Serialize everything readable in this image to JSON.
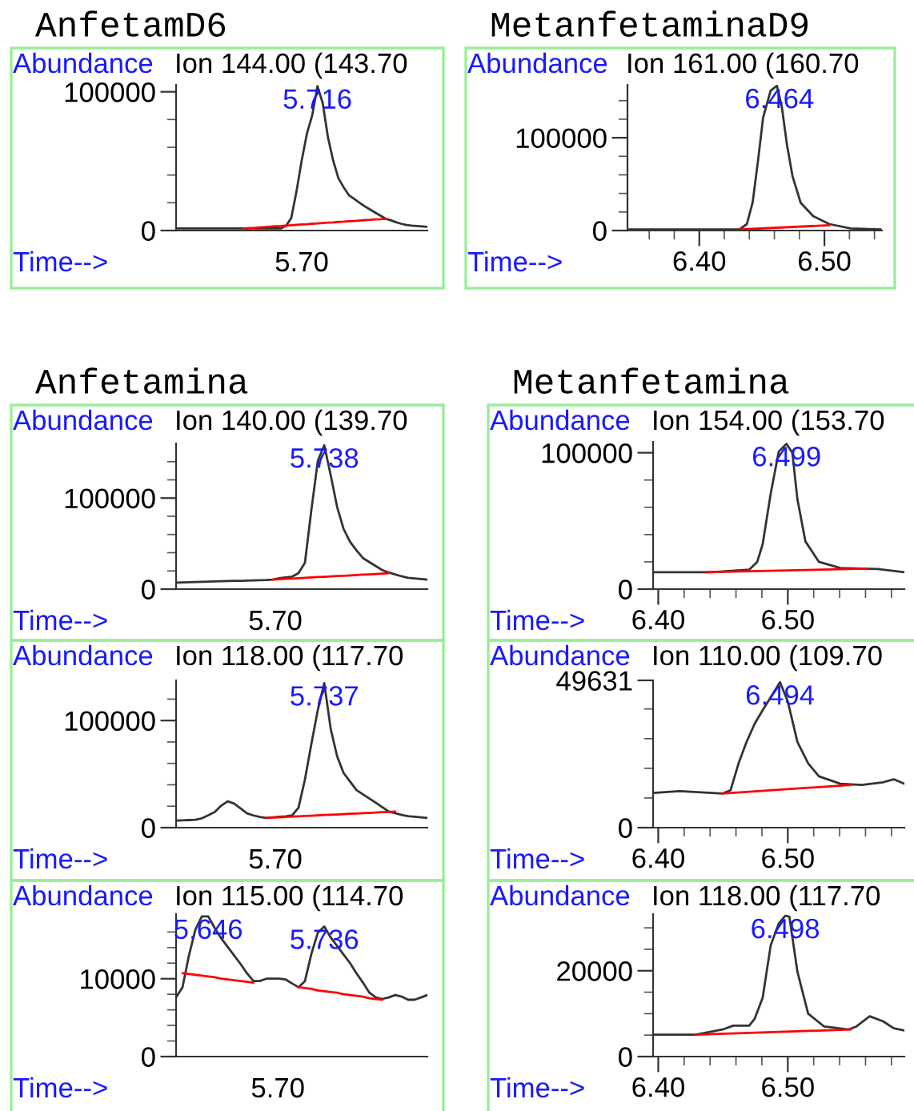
{
  "chart_data": [
    {
      "type": "line",
      "title": "AnfetamD6",
      "subtitle": "Ion 144.00 (143.70",
      "ylabel": "Abundance",
      "xlabel": "Time-->",
      "ylim": [
        0,
        105000
      ],
      "categories": [
        null,
        null,
        null,
        null,
        null,
        null,
        null,
        null,
        null,
        null,
        null,
        null,
        null,
        null,
        null,
        null,
        null,
        null,
        null,
        null,
        null,
        null,
        null,
        null,
        null,
        null,
        null,
        null,
        null,
        null,
        null,
        null,
        null,
        null,
        null,
        null,
        null,
        null,
        null,
        null,
        null,
        null,
        null,
        null,
        null,
        null,
        null,
        null,
        null
      ],
      "yticks": [
        0,
        {
          "value": 20000,
          "label": null
        },
        {
          "value": 40000,
          "label": null
        },
        {
          "value": 60000,
          "label": null
        },
        {
          "value": 80000,
          "label": null
        },
        100000
      ],
      "series": [
        {
          "color": "#333333",
          "values": [
            1500,
            1500,
            1500,
            1500,
            1500,
            1500,
            1500,
            1500,
            1500,
            1500,
            1500,
            1500,
            1500,
            1500,
            1500,
            1500,
            1500,
            1500,
            1500,
            1500,
            1500,
            3400,
            9000,
            28200,
            50600,
            70000,
            83000,
            104000,
            92000,
            67400,
            50500,
            37700,
            31200,
            25500,
            22800,
            20100,
            17500,
            15300,
            13000,
            10800,
            8500,
            7400,
            6000,
            4900,
            4000,
            3600,
            3300,
            3000,
            2700
          ]
        },
        {
          "color": "#ff0000",
          "values": [
            null,
            null,
            null,
            null,
            null,
            null,
            null,
            null,
            null,
            null,
            null,
            null,
            null,
            1500,
            1800,
            2000,
            2300,
            2500,
            2800,
            3100,
            3300,
            3600,
            3800,
            4100,
            4400,
            4600,
            4900,
            5100,
            5400,
            5700,
            5900,
            6200,
            6400,
            6700,
            6900,
            7200,
            7500,
            7700,
            8000,
            8200,
            8500,
            null,
            null,
            null,
            null,
            null,
            null,
            null,
            null
          ]
        }
      ],
      "annotations": [
        {
          "text": "5.716",
          "y": 104000
        },
        "5.70"
      ]
    },
    {
      "type": "line",
      "title": "MetanfetaminaD9",
      "subtitle": "Ion 161.00 (160.70",
      "ylabel": "Abundance",
      "xlabel": "Time-->",
      "xlim": [
        6.3426,
        6.546
      ],
      "ylim": [
        0,
        157000
      ],
      "xticks": [
        {
          "value": 6.36,
          "label": null
        },
        {
          "value": 6.38,
          "label": null
        },
        {
          "value": 6.4,
          "label": "6.40"
        },
        {
          "value": 6.42,
          "label": null
        },
        {
          "value": 6.44,
          "label": null
        },
        {
          "value": 6.46,
          "label": null
        },
        {
          "value": 6.48,
          "label": null
        },
        {
          "value": 6.5,
          "label": "6.50"
        },
        {
          "value": 6.52,
          "label": null
        },
        {
          "value": 6.54,
          "label": null
        }
      ],
      "yticks": [
        0,
        {
          "value": 20000,
          "label": null
        },
        {
          "value": 40000,
          "label": null
        },
        {
          "value": 60000,
          "label": null
        },
        {
          "value": 80000,
          "label": null
        },
        100000,
        {
          "value": 120000,
          "label": null
        },
        {
          "value": 140000,
          "label": null
        }
      ],
      "series": [
        {
          "color": "#333333",
          "x": [
            6.3426,
            6.432,
            6.438,
            6.4426,
            6.447,
            6.451,
            6.457,
            6.462,
            6.466,
            6.47,
            6.4745,
            6.481,
            6.491,
            6.504,
            6.521,
            6.545
          ],
          "values": [
            1100,
            1100,
            6900,
            30000,
            76000,
            121800,
            150600,
            156000,
            133000,
            93000,
            58600,
            30000,
            15500,
            6900,
            2300,
            1100
          ]
        },
        {
          "color": "#ff0000",
          "x": [
            6.432,
            6.504
          ],
          "values": [
            1100,
            5700
          ]
        }
      ],
      "annotations": [
        {
          "text": "6.464",
          "x": 6.464,
          "y": 156000
        }
      ]
    },
    {
      "type": "line",
      "title": "Anfetamina",
      "subtitle": "Ion 140.00 (139.70",
      "ylabel": "Abundance",
      "xlabel": "Time-->",
      "ylim": [
        0,
        160000
      ],
      "categories": [
        null,
        null,
        null,
        null,
        null,
        null,
        null,
        null,
        null,
        null,
        null,
        null,
        null,
        null,
        null,
        null,
        null,
        null,
        null,
        null,
        null,
        null,
        null,
        null,
        null,
        null,
        null,
        null,
        null,
        null,
        null,
        null,
        null,
        null,
        null,
        null,
        null,
        null,
        null,
        null
      ],
      "yticks": [
        0,
        {
          "value": 20000,
          "label": null
        },
        {
          "value": 40000,
          "label": null
        },
        {
          "value": 60000,
          "label": null
        },
        {
          "value": 80000,
          "label": null
        },
        100000,
        {
          "value": 120000,
          "label": null
        },
        {
          "value": 140000,
          "label": null
        }
      ],
      "series": [
        {
          "color": "#333333",
          "values": [
            7100,
            7300,
            7600,
            7800,
            8000,
            8200,
            8500,
            8700,
            8900,
            9100,
            9200,
            9400,
            9600,
            9800,
            10000,
            10500,
            11900,
            12800,
            13700,
            17500,
            29000,
            87200,
            141000,
            158000,
            125000,
            90000,
            66000,
            52000,
            42500,
            34100,
            29700,
            25300,
            20900,
            18300,
            16200,
            14100,
            12500,
            11800,
            11200,
            10500
          ]
        },
        {
          "color": "#ff0000",
          "values": [
            null,
            null,
            null,
            null,
            null,
            null,
            null,
            null,
            null,
            null,
            null,
            null,
            null,
            null,
            null,
            10500,
            10900,
            11300,
            11600,
            12000,
            12400,
            12800,
            13200,
            13600,
            13900,
            14300,
            14700,
            15100,
            15500,
            15900,
            16200,
            16600,
            17000,
            17400,
            null,
            null,
            null,
            null,
            null,
            null
          ]
        }
      ],
      "annotations": [
        {
          "text": "5.738",
          "y": 158000
        },
        "5.70"
      ]
    },
    {
      "type": "line",
      "title": "Metanfetamina",
      "subtitle": "Ion 154.00 (153.70",
      "ylabel": "Abundance",
      "xlabel": "Time-->",
      "xlim": [
        6.396,
        6.59
      ],
      "ylim": [
        0,
        108000
      ],
      "xticks": [
        {
          "value": 6.4,
          "label": "6.40"
        },
        {
          "value": 6.42,
          "label": null
        },
        {
          "value": 6.44,
          "label": null
        },
        {
          "value": 6.46,
          "label": null
        },
        {
          "value": 6.48,
          "label": null
        },
        {
          "value": 6.5,
          "label": "6.50"
        },
        {
          "value": 6.52,
          "label": null
        },
        {
          "value": 6.54,
          "label": null
        },
        {
          "value": 6.56,
          "label": null
        },
        {
          "value": 6.58,
          "label": null
        }
      ],
      "yticks": [
        0,
        {
          "value": 20000,
          "label": null
        },
        {
          "value": 40000,
          "label": null
        },
        {
          "value": 60000,
          "label": null
        },
        {
          "value": 80000,
          "label": null
        },
        100000
      ],
      "series": [
        {
          "color": "#333333",
          "x": [
            6.396,
            6.4413,
            6.4702,
            6.4764,
            6.4806,
            6.4868,
            6.493,
            6.499,
            6.5035,
            6.5074,
            6.5136,
            6.524,
            6.5405,
            6.5694,
            6.59
          ],
          "values": [
            12400,
            12400,
            14300,
            20000,
            33000,
            70000,
            100800,
            106600,
            100000,
            66000,
            35000,
            20000,
            15500,
            14700,
            12400
          ]
        },
        {
          "color": "#ff0000",
          "x": [
            6.4372,
            6.5612
          ],
          "values": [
            12400,
            15100
          ]
        }
      ],
      "annotations": [
        {
          "text": "6.499",
          "x": 6.499,
          "y": 106600
        }
      ]
    },
    {
      "type": "line",
      "subtitle": "Ion 118.00 (117.70",
      "ylabel": "Abundance",
      "xlabel": "Time-->",
      "ylim": [
        0,
        137500
      ],
      "categories": [
        null,
        null,
        null,
        null,
        null,
        null,
        null,
        null,
        null,
        null,
        null,
        null,
        null,
        null,
        null,
        null,
        null,
        null,
        null,
        null,
        null,
        null,
        null,
        null,
        null,
        null,
        null,
        null,
        null,
        null,
        null,
        null,
        null,
        null,
        null,
        null,
        null,
        null,
        null,
        null
      ],
      "yticks": [
        0,
        {
          "value": 20000,
          "label": null
        },
        {
          "value": 40000,
          "label": null
        },
        {
          "value": 60000,
          "label": null
        },
        {
          "value": 80000,
          "label": null
        },
        100000,
        {
          "value": 120000,
          "label": null
        }
      ],
      "series": [
        {
          "color": "#333333",
          "values": [
            6600,
            6900,
            7100,
            7400,
            8700,
            11600,
            14600,
            20500,
            24600,
            22500,
            18000,
            13400,
            11400,
            10000,
            9100,
            9600,
            10100,
            10500,
            11400,
            18600,
            45000,
            78300,
            110000,
            135000,
            92000,
            66500,
            51000,
            43000,
            35000,
            31100,
            27200,
            23200,
            19100,
            15000,
            13500,
            11900,
            10800,
            10200,
            9600,
            9000
          ]
        },
        {
          "color": "#ff0000",
          "values": [
            null,
            null,
            null,
            null,
            null,
            null,
            null,
            null,
            null,
            null,
            null,
            null,
            null,
            null,
            9100,
            9400,
            9700,
            10000,
            10300,
            10600,
            10900,
            11200,
            11500,
            11800,
            12100,
            12300,
            12600,
            12900,
            13200,
            13500,
            13800,
            14100,
            14400,
            14700,
            15000,
            null,
            null,
            null,
            null,
            null
          ]
        }
      ],
      "annotations": [
        {
          "text": "5.737",
          "y": 135000
        },
        "5.70"
      ]
    },
    {
      "type": "line",
      "subtitle": "Ion 110.00 (109.70",
      "ylabel": "Abundance",
      "xlabel": "Time-->",
      "xlim": [
        6.396,
        6.59
      ],
      "ylim": [
        0,
        49631
      ],
      "xticks": [
        {
          "value": 6.4,
          "label": "6.40"
        },
        {
          "value": 6.42,
          "label": null
        },
        {
          "value": 6.44,
          "label": null
        },
        {
          "value": 6.46,
          "label": null
        },
        {
          "value": 6.48,
          "label": null
        },
        {
          "value": 6.5,
          "label": "6.50"
        },
        {
          "value": 6.52,
          "label": null
        },
        {
          "value": 6.54,
          "label": null
        },
        {
          "value": 6.56,
          "label": null
        },
        {
          "value": 6.58,
          "label": null
        }
      ],
      "yticks": [
        0,
        {
          "value": 10000,
          "label": null
        },
        {
          "value": 20000,
          "label": null
        },
        {
          "value": 30000,
          "label": null
        },
        {
          "value": 40000,
          "label": null
        },
        49631
      ],
      "series": [
        {
          "color": "#333333",
          "x": [
            6.396,
            6.4165,
            6.4496,
            6.4558,
            6.462,
            6.4682,
            6.4744,
            6.4806,
            6.494,
            6.5,
            6.5074,
            6.5157,
            6.524,
            6.5405,
            6.557,
            6.5736,
            6.5818,
            6.59
          ],
          "values": [
            11700,
            12300,
            11500,
            12600,
            21700,
            28900,
            35000,
            39600,
            49000,
            42500,
            28900,
            21700,
            17300,
            14800,
            14400,
            15300,
            16300,
            14800
          ]
        },
        {
          "color": "#ff0000",
          "x": [
            6.4496,
            6.5488
          ],
          "values": [
            11500,
            14400
          ]
        }
      ],
      "annotations": [
        {
          "text": "6.494",
          "x": 6.494,
          "y": 49000
        }
      ]
    },
    {
      "type": "line",
      "subtitle": "Ion 115.00 (114.70",
      "ylabel": "Abundance",
      "xlabel": "Time-->",
      "ylim": [
        0,
        18300
      ],
      "categories": [
        null,
        null,
        null,
        null,
        null,
        null,
        null,
        null,
        null,
        null,
        null,
        null,
        null,
        null,
        null,
        null,
        null,
        null,
        null,
        null,
        null,
        null,
        null,
        null,
        null,
        null,
        null,
        null,
        null,
        null,
        null,
        null,
        null,
        null,
        null,
        null,
        null,
        null,
        null,
        null
      ],
      "yticks": [
        0,
        {
          "value": 2000,
          "label": null
        },
        {
          "value": 4000,
          "label": null
        },
        {
          "value": 6000,
          "label": null
        },
        {
          "value": 8000,
          "label": null
        },
        10000,
        {
          "value": 12000,
          "label": null
        },
        {
          "value": 14000,
          "label": null
        },
        {
          "value": 16000,
          "label": null
        }
      ],
      "series": [
        {
          "color": "#333333",
          "values": [
            7600,
            8900,
            13000,
            16300,
            18000,
            18000,
            16500,
            15200,
            14100,
            13000,
            11900,
            10700,
            9700,
            9700,
            10000,
            10000,
            10000,
            9900,
            9400,
            8900,
            9700,
            13200,
            15900,
            16700,
            15300,
            14200,
            13100,
            12000,
            10700,
            9500,
            8200,
            7600,
            7400,
            7600,
            7900,
            7700,
            7300,
            7300,
            7600,
            7900
          ]
        },
        {
          "color": "#ff0000",
          "values": [
            null,
            10700,
            10600,
            10500,
            10400,
            10300,
            10200,
            10000,
            9900,
            9800,
            9700,
            9600,
            9500,
            null,
            null,
            null,
            null,
            null,
            null,
            null,
            null,
            null,
            null,
            null,
            null,
            null,
            null,
            null,
            null,
            null,
            null,
            null,
            null,
            null,
            null,
            null,
            null,
            null,
            null,
            null
          ]
        },
        {
          "color": "#ff0000",
          "values": [
            null,
            null,
            null,
            null,
            null,
            null,
            null,
            null,
            null,
            null,
            null,
            null,
            null,
            null,
            null,
            null,
            null,
            null,
            null,
            8900,
            8800,
            8700,
            8500,
            8400,
            8300,
            8200,
            8000,
            7900,
            7800,
            7700,
            7500,
            7400,
            7300,
            null,
            null,
            null,
            null,
            null,
            null,
            null
          ]
        }
      ],
      "annotations": [
        {
          "text": "5.646",
          "y": 18000
        },
        {
          "text": "5.736",
          "y": 16700
        },
        "5.70"
      ]
    },
    {
      "type": "line",
      "subtitle": "Ion 118.00 (117.70",
      "ylabel": "Abundance",
      "xlabel": "Time-->",
      "xlim": [
        6.396,
        6.59
      ],
      "ylim": [
        0,
        33200
      ],
      "xticks": [
        {
          "value": 6.4,
          "label": "6.40"
        },
        {
          "value": 6.42,
          "label": null
        },
        {
          "value": 6.44,
          "label": null
        },
        {
          "value": 6.46,
          "label": null
        },
        {
          "value": 6.48,
          "label": null
        },
        {
          "value": 6.5,
          "label": "6.50"
        },
        {
          "value": 6.52,
          "label": null
        },
        {
          "value": 6.54,
          "label": null
        },
        {
          "value": 6.56,
          "label": null
        },
        {
          "value": 6.58,
          "label": null
        }
      ],
      "yticks": [
        0,
        {
          "value": 5000,
          "label": null
        },
        {
          "value": 10000,
          "label": null
        },
        {
          "value": 15000,
          "label": null
        },
        20000,
        {
          "value": 25000,
          "label": null
        },
        {
          "value": 30000,
          "label": null
        }
      ],
      "series": [
        {
          "color": "#333333",
          "x": [
            6.396,
            6.4289,
            6.4496,
            6.4579,
            6.4702,
            6.4744,
            6.4806,
            6.4868,
            6.493,
            6.498,
            6.5012,
            6.5074,
            6.5157,
            6.5281,
            6.5467,
            6.5529,
            6.5632,
            6.5736,
            6.5818,
            6.59
          ],
          "values": [
            5100,
            5100,
            6300,
            7200,
            7200,
            8800,
            13700,
            25900,
            31000,
            32800,
            32600,
            19800,
            10000,
            7000,
            6300,
            7000,
            9400,
            8200,
            6600,
            6100
          ]
        },
        {
          "color": "#ff0000",
          "x": [
            6.4289,
            6.5488
          ],
          "values": [
            5100,
            6300
          ]
        }
      ],
      "annotations": [
        {
          "text": "6.498",
          "x": 6.498,
          "y": 32800
        }
      ]
    }
  ]
}
